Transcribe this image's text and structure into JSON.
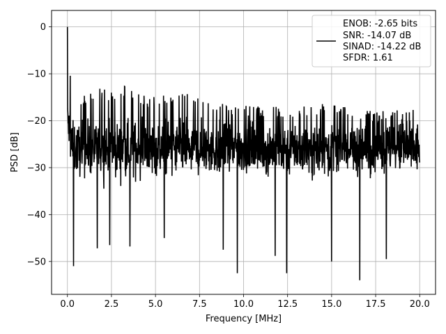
{
  "chart_data": {
    "type": "line",
    "title": "",
    "xlabel": "Frequency [MHz]",
    "ylabel": "PSD [dB]",
    "xlim": [
      -0.9,
      20.9
    ],
    "ylim": [
      -57,
      3.5
    ],
    "xticks": [
      0.0,
      2.5,
      5.0,
      7.5,
      10.0,
      12.5,
      15.0,
      17.5,
      20.0
    ],
    "xtick_labels": [
      "0.0",
      "2.5",
      "5.0",
      "7.5",
      "10.0",
      "12.5",
      "15.0",
      "17.5",
      "20.0"
    ],
    "yticks": [
      0,
      -10,
      -20,
      -30,
      -40,
      -50
    ],
    "ytick_labels": [
      "0",
      "−10",
      "−20",
      "−30",
      "−40",
      "−50"
    ],
    "grid": true,
    "legend": {
      "placement": "top-right",
      "entries": [
        "ENOB: -2.65 bits",
        "SNR: -14.07 dB",
        "SINAD: -14.22 dB",
        "SFDR: 1.61"
      ]
    },
    "series": [
      {
        "color": "#000000",
        "trace": {
          "x_range": [
            0.0,
            20.0
          ],
          "upper_envelope": [
            [
              0.0,
              0.0
            ],
            [
              0.03,
              -4
            ],
            [
              0.06,
              -8
            ],
            [
              0.1,
              -11
            ],
            [
              0.2,
              -9
            ],
            [
              0.3,
              -12
            ],
            [
              0.5,
              -14
            ],
            [
              1.0,
              -14
            ],
            [
              1.5,
              -13
            ],
            [
              2.5,
              -13.5
            ],
            [
              3.2,
              -12.5
            ],
            [
              4.0,
              -14
            ],
            [
              5.0,
              -15
            ],
            [
              6.5,
              -13.5
            ],
            [
              8.0,
              -16
            ],
            [
              10.0,
              -16.5
            ],
            [
              12.5,
              -17
            ],
            [
              15.0,
              -16
            ],
            [
              17.5,
              -18
            ],
            [
              20.0,
              -17.5
            ]
          ],
          "mean_level_db": -26,
          "spread_db": 7,
          "deep_nulls": [
            [
              0.35,
              -51
            ],
            [
              1.7,
              -47.2
            ],
            [
              2.4,
              -46.5
            ],
            [
              3.55,
              -46.8
            ],
            [
              5.5,
              -45
            ],
            [
              8.85,
              -47.5
            ],
            [
              9.65,
              -52.5
            ],
            [
              11.8,
              -48.8
            ],
            [
              12.45,
              -52.5
            ],
            [
              15.0,
              -50
            ],
            [
              16.6,
              -54
            ],
            [
              18.1,
              -49.5
            ]
          ],
          "points": 1500
        }
      }
    ]
  }
}
